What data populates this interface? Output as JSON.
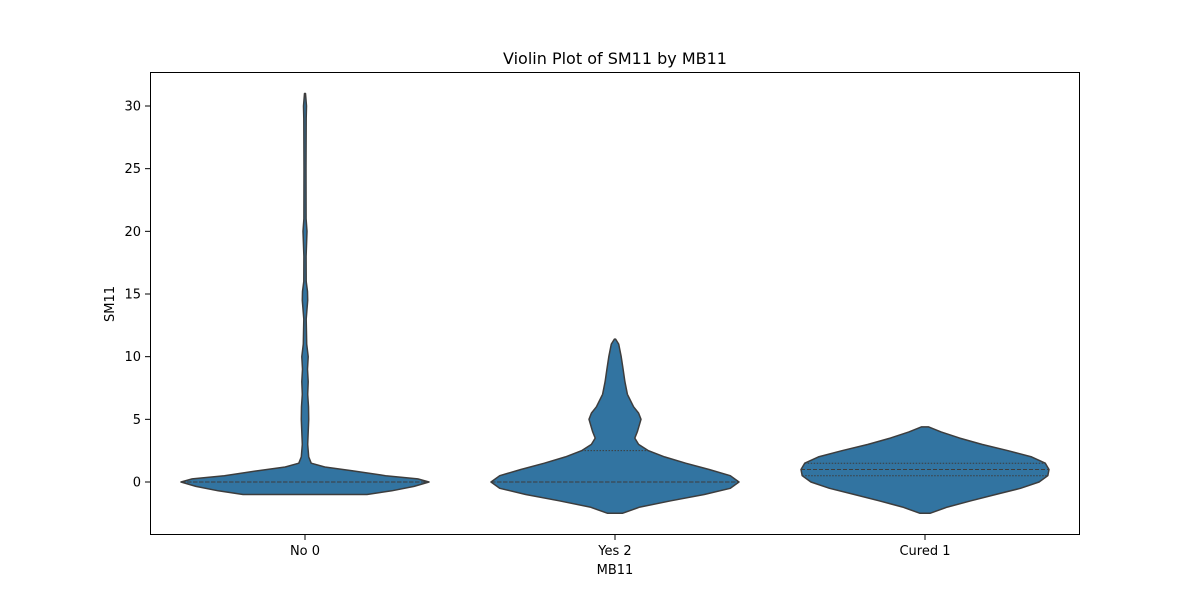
{
  "chart_data": {
    "type": "violin",
    "title": "Violin Plot of SM11 by MB11",
    "xlabel": "MB11",
    "ylabel": "SM11",
    "ylim": [
      -4.0,
      32.5
    ],
    "yticks": [
      0,
      5,
      10,
      15,
      20,
      25,
      30
    ],
    "grid": false,
    "fill_color": "#3274a1",
    "edge_color": "#3d3d3d",
    "categories": [
      "No 0",
      "Yes 2",
      "Cured 1"
    ],
    "violins": [
      {
        "category": "No 0",
        "quartiles": [
          0,
          0,
          0
        ],
        "density": [
          [
            -1.0,
            0.5
          ],
          [
            -0.7,
            0.7
          ],
          [
            -0.35,
            0.88
          ],
          [
            0,
            1.0
          ],
          [
            0.25,
            0.91
          ],
          [
            0.5,
            0.65
          ],
          [
            0.9,
            0.38
          ],
          [
            1.2,
            0.16
          ],
          [
            1.5,
            0.05
          ],
          [
            2,
            0.03
          ],
          [
            3,
            0.022
          ],
          [
            4,
            0.026
          ],
          [
            5,
            0.03
          ],
          [
            6,
            0.028
          ],
          [
            7,
            0.022
          ],
          [
            8,
            0.026
          ],
          [
            9,
            0.02
          ],
          [
            10,
            0.026
          ],
          [
            11,
            0.014
          ],
          [
            13,
            0.01
          ],
          [
            14.5,
            0.022
          ],
          [
            15.2,
            0.02
          ],
          [
            16,
            0.01
          ],
          [
            18,
            0.009
          ],
          [
            20,
            0.016
          ],
          [
            21,
            0.009
          ],
          [
            25,
            0.008
          ],
          [
            29,
            0.01
          ],
          [
            30,
            0.012
          ],
          [
            31,
            0.004
          ]
        ]
      },
      {
        "category": "Yes 2",
        "quartiles": [
          0,
          0,
          2.5
        ],
        "density": [
          [
            -2.5,
            0.06
          ],
          [
            -2,
            0.2
          ],
          [
            -1.5,
            0.45
          ],
          [
            -1,
            0.72
          ],
          [
            -0.5,
            0.93
          ],
          [
            0,
            1.0
          ],
          [
            0.5,
            0.93
          ],
          [
            1,
            0.76
          ],
          [
            1.5,
            0.57
          ],
          [
            2,
            0.4
          ],
          [
            2.5,
            0.27
          ],
          [
            3,
            0.19
          ],
          [
            3.5,
            0.16
          ],
          [
            4,
            0.18
          ],
          [
            5,
            0.21
          ],
          [
            5.5,
            0.19
          ],
          [
            6,
            0.15
          ],
          [
            7,
            0.1
          ],
          [
            8,
            0.08
          ],
          [
            9,
            0.065
          ],
          [
            10,
            0.05
          ],
          [
            11,
            0.03
          ],
          [
            11.4,
            0.005
          ]
        ]
      },
      {
        "category": "Cured 1",
        "quartiles": [
          0.5,
          1.0,
          1.5
        ],
        "density": [
          [
            -2.5,
            0.04
          ],
          [
            -2,
            0.18
          ],
          [
            -1.5,
            0.37
          ],
          [
            -1,
            0.57
          ],
          [
            -0.5,
            0.77
          ],
          [
            0,
            0.92
          ],
          [
            0.5,
            0.99
          ],
          [
            1,
            1.0
          ],
          [
            1.5,
            0.97
          ],
          [
            2,
            0.86
          ],
          [
            2.5,
            0.67
          ],
          [
            3,
            0.46
          ],
          [
            3.5,
            0.28
          ],
          [
            4,
            0.13
          ],
          [
            4.4,
            0.03
          ]
        ]
      }
    ]
  }
}
